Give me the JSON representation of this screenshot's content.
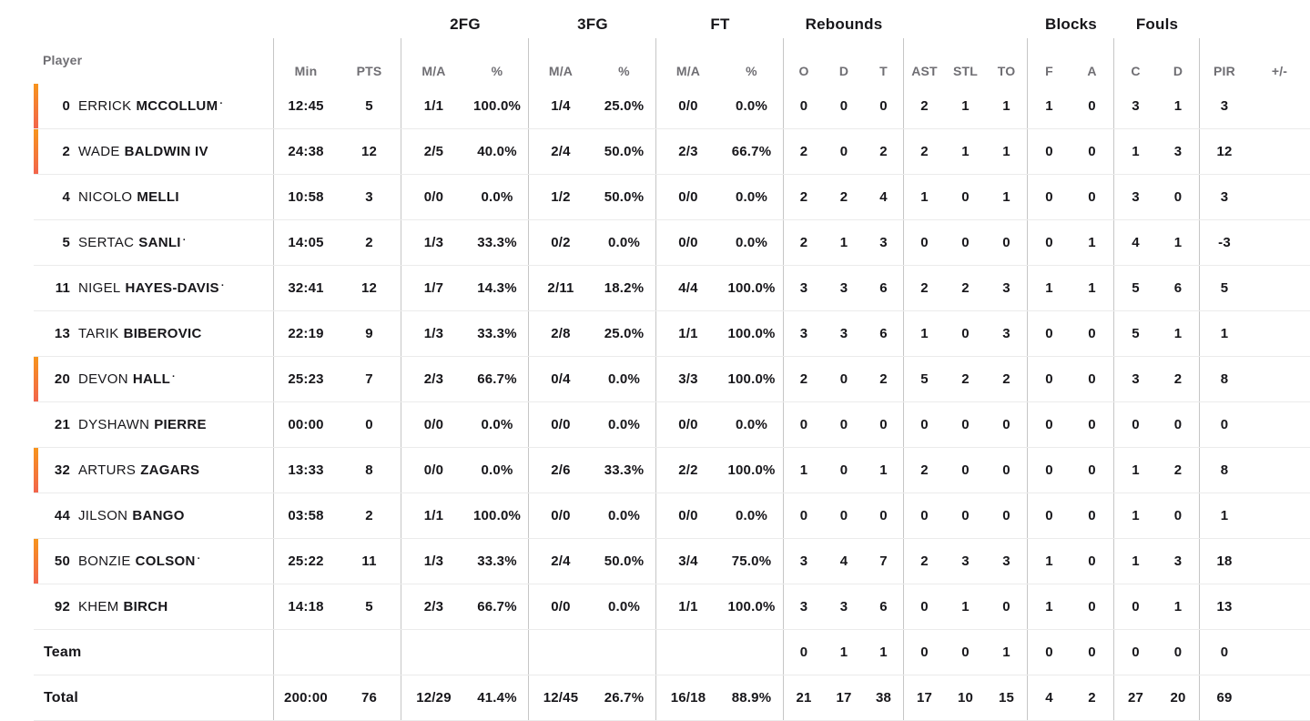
{
  "table": {
    "colors": {
      "bar_top": "#f7941d",
      "bar_bottom": "#f2654c"
    },
    "header": {
      "player_label": "Player",
      "groups": {
        "fg2": "2FG",
        "fg3": "3FG",
        "ft": "FT",
        "rebounds": "Rebounds",
        "blocks": "Blocks",
        "fouls": "Fouls"
      },
      "columns": {
        "min": "Min",
        "pts": "PTS",
        "ma": "M/A",
        "pct": "%",
        "reb_o": "O",
        "reb_d": "D",
        "reb_t": "T",
        "ast": "AST",
        "stl": "STL",
        "to": "TO",
        "blk_f": "F",
        "blk_a": "A",
        "foul_c": "C",
        "foul_d": "D",
        "pir": "PIR",
        "plus_minus": "+/-"
      }
    },
    "rows": [
      {
        "number": "0",
        "first": "ERRICK",
        "last": "MCCOLLUM",
        "starter": true,
        "on_court": true,
        "stats": [
          "12:45",
          "5",
          "1/1",
          "100.0%",
          "1/4",
          "25.0%",
          "0/0",
          "0.0%",
          "0",
          "0",
          "0",
          "2",
          "1",
          "1",
          "1",
          "0",
          "3",
          "1",
          "3",
          ""
        ]
      },
      {
        "number": "2",
        "first": "WADE",
        "last": "BALDWIN IV",
        "starter": false,
        "on_court": true,
        "stats": [
          "24:38",
          "12",
          "2/5",
          "40.0%",
          "2/4",
          "50.0%",
          "2/3",
          "66.7%",
          "2",
          "0",
          "2",
          "2",
          "1",
          "1",
          "0",
          "0",
          "1",
          "3",
          "12",
          ""
        ]
      },
      {
        "number": "4",
        "first": "NICOLO",
        "last": "MELLI",
        "starter": false,
        "on_court": false,
        "stats": [
          "10:58",
          "3",
          "0/0",
          "0.0%",
          "1/2",
          "50.0%",
          "0/0",
          "0.0%",
          "2",
          "2",
          "4",
          "1",
          "0",
          "1",
          "0",
          "0",
          "3",
          "0",
          "3",
          ""
        ]
      },
      {
        "number": "5",
        "first": "SERTAC",
        "last": "SANLI",
        "starter": true,
        "on_court": false,
        "stats": [
          "14:05",
          "2",
          "1/3",
          "33.3%",
          "0/2",
          "0.0%",
          "0/0",
          "0.0%",
          "2",
          "1",
          "3",
          "0",
          "0",
          "0",
          "0",
          "1",
          "4",
          "1",
          "-3",
          ""
        ]
      },
      {
        "number": "11",
        "first": "NIGEL",
        "last": "HAYES-DAVIS",
        "starter": true,
        "on_court": false,
        "stats": [
          "32:41",
          "12",
          "1/7",
          "14.3%",
          "2/11",
          "18.2%",
          "4/4",
          "100.0%",
          "3",
          "3",
          "6",
          "2",
          "2",
          "3",
          "1",
          "1",
          "5",
          "6",
          "5",
          ""
        ]
      },
      {
        "number": "13",
        "first": "TARIK",
        "last": "BIBEROVIC",
        "starter": false,
        "on_court": false,
        "stats": [
          "22:19",
          "9",
          "1/3",
          "33.3%",
          "2/8",
          "25.0%",
          "1/1",
          "100.0%",
          "3",
          "3",
          "6",
          "1",
          "0",
          "3",
          "0",
          "0",
          "5",
          "1",
          "1",
          ""
        ]
      },
      {
        "number": "20",
        "first": "DEVON",
        "last": "HALL",
        "starter": true,
        "on_court": true,
        "stats": [
          "25:23",
          "7",
          "2/3",
          "66.7%",
          "0/4",
          "0.0%",
          "3/3",
          "100.0%",
          "2",
          "0",
          "2",
          "5",
          "2",
          "2",
          "0",
          "0",
          "3",
          "2",
          "8",
          ""
        ]
      },
      {
        "number": "21",
        "first": "DYSHAWN",
        "last": "PIERRE",
        "starter": false,
        "on_court": false,
        "stats": [
          "00:00",
          "0",
          "0/0",
          "0.0%",
          "0/0",
          "0.0%",
          "0/0",
          "0.0%",
          "0",
          "0",
          "0",
          "0",
          "0",
          "0",
          "0",
          "0",
          "0",
          "0",
          "0",
          ""
        ]
      },
      {
        "number": "32",
        "first": "ARTURS",
        "last": "ZAGARS",
        "starter": false,
        "on_court": true,
        "stats": [
          "13:33",
          "8",
          "0/0",
          "0.0%",
          "2/6",
          "33.3%",
          "2/2",
          "100.0%",
          "1",
          "0",
          "1",
          "2",
          "0",
          "0",
          "0",
          "0",
          "1",
          "2",
          "8",
          ""
        ]
      },
      {
        "number": "44",
        "first": "JILSON",
        "last": "BANGO",
        "starter": false,
        "on_court": false,
        "stats": [
          "03:58",
          "2",
          "1/1",
          "100.0%",
          "0/0",
          "0.0%",
          "0/0",
          "0.0%",
          "0",
          "0",
          "0",
          "0",
          "0",
          "0",
          "0",
          "0",
          "1",
          "0",
          "1",
          ""
        ]
      },
      {
        "number": "50",
        "first": "BONZIE",
        "last": "COLSON",
        "starter": true,
        "on_court": true,
        "stats": [
          "25:22",
          "11",
          "1/3",
          "33.3%",
          "2/4",
          "50.0%",
          "3/4",
          "75.0%",
          "3",
          "4",
          "7",
          "2",
          "3",
          "3",
          "1",
          "0",
          "1",
          "3",
          "18",
          ""
        ]
      },
      {
        "number": "92",
        "first": "KHEM",
        "last": "BIRCH",
        "starter": false,
        "on_court": false,
        "stats": [
          "14:18",
          "5",
          "2/3",
          "66.7%",
          "0/0",
          "0.0%",
          "1/1",
          "100.0%",
          "3",
          "3",
          "6",
          "0",
          "1",
          "0",
          "1",
          "0",
          "0",
          "1",
          "13",
          ""
        ]
      }
    ],
    "team_row": {
      "label": "Team",
      "stats": [
        "",
        "",
        "",
        "",
        "",
        "",
        "",
        "",
        "0",
        "1",
        "1",
        "0",
        "0",
        "1",
        "0",
        "0",
        "0",
        "0",
        "0",
        ""
      ]
    },
    "total_row": {
      "label": "Total",
      "stats": [
        "200:00",
        "76",
        "12/29",
        "41.4%",
        "12/45",
        "26.7%",
        "16/18",
        "88.9%",
        "21",
        "17",
        "38",
        "17",
        "10",
        "15",
        "4",
        "2",
        "27",
        "20",
        "69",
        ""
      ]
    }
  }
}
